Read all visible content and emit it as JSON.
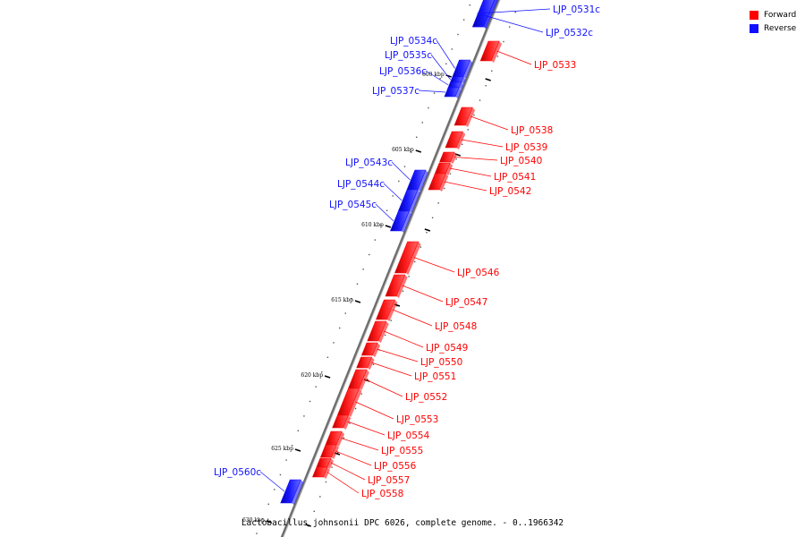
{
  "legend": {
    "forward_label": "Forward",
    "reverse_label": "Reverse",
    "forward_color": "#ff0000",
    "reverse_color": "#1010ff"
  },
  "caption": "Lactobacillus johnsonii DPC 6026, complete genome. - 0..1966342",
  "scale_ticks": [
    "600 kbp",
    "605 kbp",
    "610 kbp",
    "615 kbp",
    "620 kbp",
    "625 kbp",
    "630 kbp"
  ],
  "genes": [
    {
      "name": "LJP_0531c",
      "strand": "reverse"
    },
    {
      "name": "LJP_0532c",
      "strand": "reverse"
    },
    {
      "name": "LJP_0533",
      "strand": "forward"
    },
    {
      "name": "LJP_0534c",
      "strand": "reverse"
    },
    {
      "name": "LJP_0535c",
      "strand": "reverse"
    },
    {
      "name": "LJP_0536c",
      "strand": "reverse"
    },
    {
      "name": "LJP_0537c",
      "strand": "reverse"
    },
    {
      "name": "LJP_0538",
      "strand": "forward"
    },
    {
      "name": "LJP_0539",
      "strand": "forward"
    },
    {
      "name": "LJP_0540",
      "strand": "forward"
    },
    {
      "name": "LJP_0541",
      "strand": "forward"
    },
    {
      "name": "LJP_0542",
      "strand": "forward"
    },
    {
      "name": "LJP_0543c",
      "strand": "reverse"
    },
    {
      "name": "LJP_0544c",
      "strand": "reverse"
    },
    {
      "name": "LJP_0545c",
      "strand": "reverse"
    },
    {
      "name": "LJP_0546",
      "strand": "forward"
    },
    {
      "name": "LJP_0547",
      "strand": "forward"
    },
    {
      "name": "LJP_0548",
      "strand": "forward"
    },
    {
      "name": "LJP_0549",
      "strand": "forward"
    },
    {
      "name": "LJP_0550",
      "strand": "forward"
    },
    {
      "name": "LJP_0551",
      "strand": "forward"
    },
    {
      "name": "LJP_0552",
      "strand": "forward"
    },
    {
      "name": "LJP_0553",
      "strand": "forward"
    },
    {
      "name": "LJP_0554",
      "strand": "forward"
    },
    {
      "name": "LJP_0555",
      "strand": "forward"
    },
    {
      "name": "LJP_0556",
      "strand": "forward"
    },
    {
      "name": "LJP_0557",
      "strand": "forward"
    },
    {
      "name": "LJP_0558",
      "strand": "forward"
    },
    {
      "name": "LJP_0560c",
      "strand": "reverse"
    }
  ]
}
